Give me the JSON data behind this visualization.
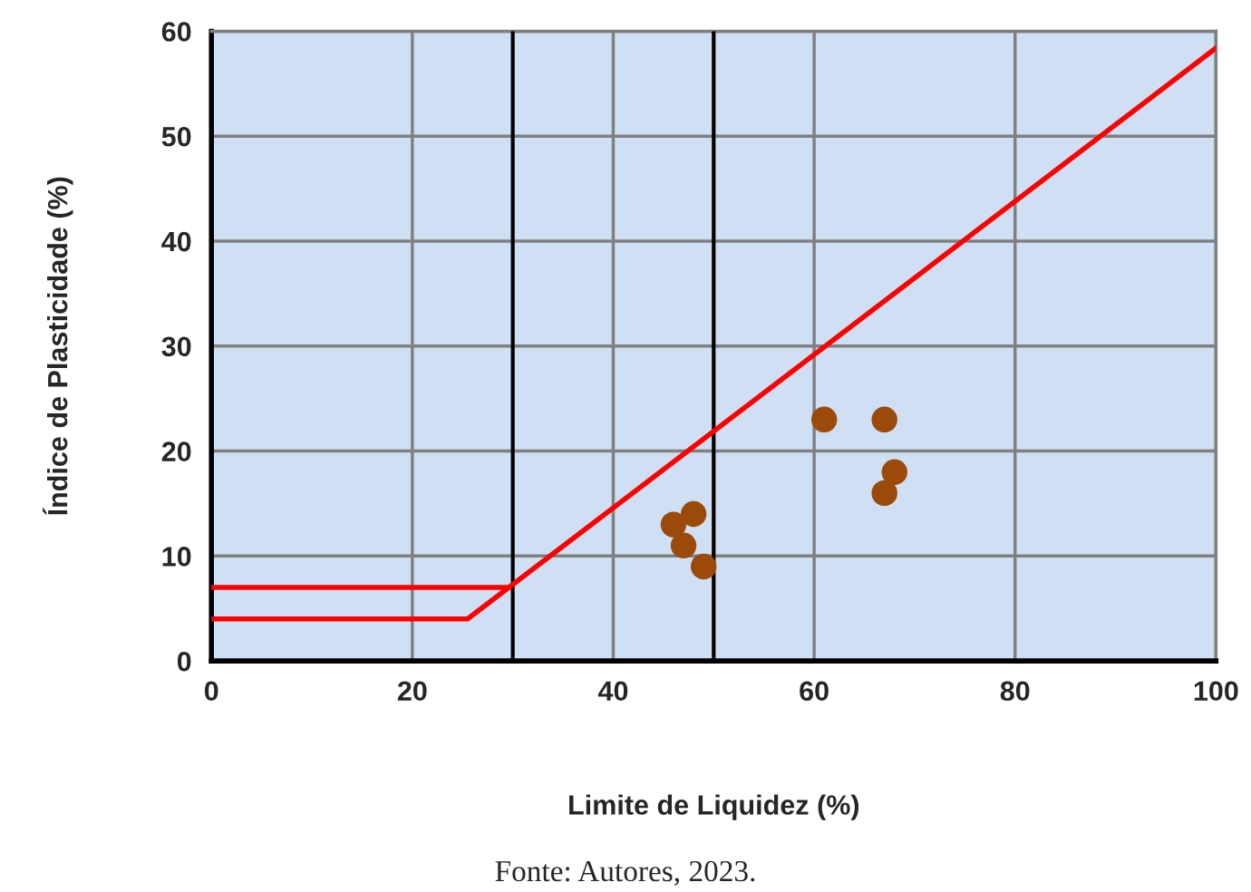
{
  "chart_data": {
    "type": "scatter",
    "xlabel": "Limite de Liquidez (%)",
    "ylabel": "Índice de Plasticidade (%)",
    "xlim": [
      0,
      100
    ],
    "ylim": [
      0,
      60
    ],
    "xticks": [
      0,
      20,
      40,
      60,
      80,
      100
    ],
    "yticks": [
      0,
      10,
      20,
      30,
      40,
      50,
      60
    ],
    "grid": true,
    "marker": "circle",
    "legend": false,
    "series": [
      {
        "color": "#9c4a0a",
        "x": [
          46,
          48,
          47,
          49,
          61,
          67,
          68,
          67
        ],
        "values": [
          13,
          14,
          11,
          9,
          23,
          23,
          18,
          16
        ]
      },
      {
        "type": "line",
        "color": "#ff0000",
        "marker": "none",
        "x": [
          0,
          25.5,
          100
        ],
        "values": [
          4,
          4,
          58.4
        ]
      },
      {
        "type": "line",
        "color": "#ff0000",
        "marker": "none",
        "x": [
          0,
          29.6
        ],
        "values": [
          7,
          7
        ]
      }
    ],
    "ref_lines": [
      {
        "axis": "x",
        "value": 30,
        "label": null,
        "color": "#000000"
      },
      {
        "axis": "x",
        "value": 50,
        "label": null,
        "color": "#000000"
      }
    ],
    "annotations": [
      "Fonte: Autores, 2023."
    ]
  }
}
